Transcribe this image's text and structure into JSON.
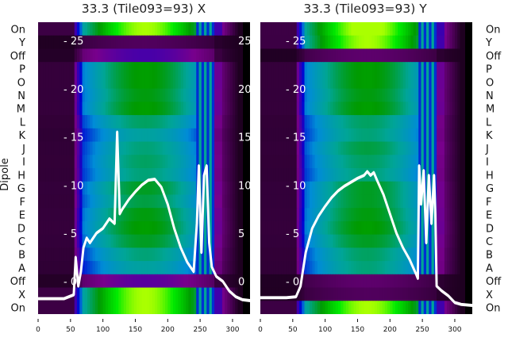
{
  "chart_data": [
    {
      "type": "heatmap",
      "title": "33.3 (Tile093=93) X",
      "ylabel": "Dipole",
      "row_labels": [
        "On",
        "Y",
        "Off",
        "P",
        "O",
        "N",
        "M",
        "L",
        "K",
        "J",
        "I",
        "H",
        "G",
        "F",
        "E",
        "D",
        "C",
        "B",
        "A",
        "Off",
        "X",
        "On"
      ],
      "row_levels": [
        0.95,
        0.08,
        0.2,
        0.72,
        0.72,
        0.7,
        0.72,
        0.62,
        0.55,
        0.6,
        0.62,
        0.6,
        0.68,
        0.65,
        0.7,
        0.72,
        0.68,
        0.6,
        0.55,
        0.18,
        0.95,
        0.95
      ],
      "x_ticks": [
        0,
        50,
        100,
        150,
        200,
        250,
        300
      ],
      "xlim": [
        0,
        327
      ],
      "overlay_yticks": [
        0,
        5,
        10,
        15,
        20,
        25
      ],
      "overlay_ylim": [
        -3.4,
        26.9
      ],
      "line_series": {
        "x": [
          0,
          20,
          40,
          55,
          58,
          62,
          66,
          70,
          75,
          80,
          90,
          100,
          110,
          118,
          122,
          126,
          130,
          140,
          150,
          160,
          170,
          180,
          190,
          200,
          210,
          220,
          230,
          240,
          245,
          248,
          252,
          256,
          260,
          264,
          268,
          275,
          285,
          295,
          305,
          315,
          327
        ],
        "y": [
          -1.8,
          -1.8,
          -1.8,
          -1.4,
          2.5,
          -0.5,
          1,
          3.5,
          4.5,
          4,
          5,
          5.5,
          6.5,
          6,
          15.5,
          7,
          7.5,
          8.5,
          9.3,
          10,
          10.5,
          10.6,
          9.8,
          8,
          5.5,
          3.5,
          2,
          1,
          6,
          12,
          3,
          11,
          12,
          4,
          1.5,
          0.5,
          0,
          -1,
          -1.6,
          -1.9,
          -2
        ]
      }
    },
    {
      "type": "heatmap",
      "title": "33.3 (Tile093=93) Y",
      "row_labels": [
        "On",
        "Y",
        "Off",
        "P",
        "O",
        "N",
        "M",
        "L",
        "K",
        "J",
        "I",
        "H",
        "G",
        "F",
        "E",
        "D",
        "C",
        "B",
        "A",
        "Off",
        "X",
        "On"
      ],
      "row_levels": [
        0.98,
        0.95,
        0.1,
        0.72,
        0.72,
        0.7,
        0.72,
        0.62,
        0.6,
        0.65,
        0.62,
        0.6,
        0.68,
        0.68,
        0.7,
        0.72,
        0.68,
        0.62,
        0.6,
        0.1,
        0.08,
        0.95
      ],
      "x_ticks": [
        0,
        50,
        100,
        150,
        200,
        250,
        300
      ],
      "xlim": [
        0,
        327
      ],
      "overlay_yticks": [
        0,
        5,
        10,
        15,
        20,
        25
      ],
      "overlay_ylim": [
        -3.4,
        26.9
      ],
      "line_series": {
        "x": [
          0,
          20,
          40,
          55,
          62,
          70,
          80,
          90,
          100,
          110,
          120,
          130,
          140,
          150,
          160,
          165,
          170,
          175,
          180,
          190,
          200,
          210,
          220,
          230,
          240,
          243,
          245,
          248,
          252,
          256,
          260,
          264,
          268,
          270,
          272,
          280,
          290,
          300,
          310,
          327
        ],
        "y": [
          -1.7,
          -1.7,
          -1.7,
          -1.6,
          -0.5,
          3,
          5.5,
          6.8,
          7.8,
          8.7,
          9.4,
          9.9,
          10.3,
          10.7,
          11,
          11.4,
          11,
          11.3,
          10.5,
          9,
          7,
          5,
          3.5,
          2.3,
          0.8,
          0.3,
          12,
          8,
          11.5,
          4,
          11,
          6,
          11,
          7,
          -0.5,
          -1,
          -1.5,
          -2.2,
          -2.4,
          -2.5
        ]
      }
    }
  ]
}
